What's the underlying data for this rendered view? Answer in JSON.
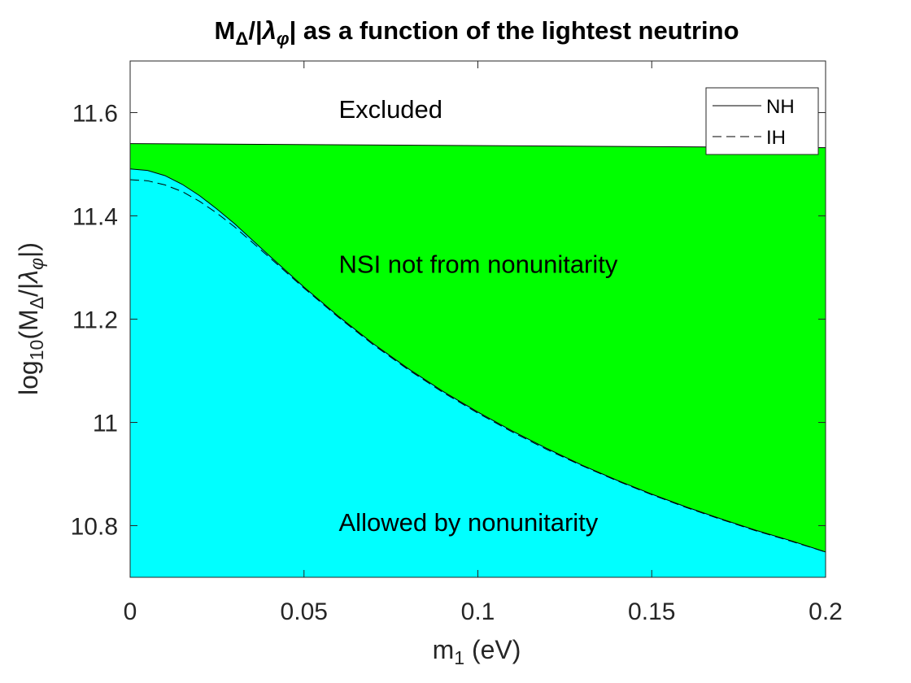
{
  "chart_data": {
    "type": "area",
    "title": {
      "parts": [
        {
          "text": "M",
          "style": "normal"
        },
        {
          "text": "Δ",
          "style": "sub"
        },
        {
          "text": "/|",
          "style": "normal"
        },
        {
          "text": "λ",
          "style": "italic"
        },
        {
          "text": "φ",
          "style": "sub-italic"
        },
        {
          "text": "| as a function of the lightest neutrino",
          "style": "normal"
        }
      ]
    },
    "xlabel": {
      "parts": [
        {
          "text": "m",
          "style": "normal"
        },
        {
          "text": "1",
          "style": "sub"
        },
        {
          "text": " (eV)",
          "style": "normal"
        }
      ]
    },
    "ylabel": {
      "parts": [
        {
          "text": "log",
          "style": "normal"
        },
        {
          "text": "10",
          "style": "sub"
        },
        {
          "text": "(M",
          "style": "normal"
        },
        {
          "text": "Δ",
          "style": "sub"
        },
        {
          "text": "/|",
          "style": "normal"
        },
        {
          "text": "λ",
          "style": "italic"
        },
        {
          "text": "φ",
          "style": "sub-italic"
        },
        {
          "text": "|)",
          "style": "normal"
        }
      ]
    },
    "xlim": [
      0,
      0.2
    ],
    "ylim": [
      10.7,
      11.7
    ],
    "xticks": [
      0,
      0.05,
      0.1,
      0.15,
      0.2
    ],
    "xtick_labels": [
      "0",
      "0.05",
      "0.1",
      "0.15",
      "0.2"
    ],
    "yticks": [
      10.8,
      11,
      11.2,
      11.4,
      11.6
    ],
    "ytick_labels": [
      "10.8",
      "11",
      "11.2",
      "11.4",
      "11.6"
    ],
    "grid": false,
    "legend_position": "top-right",
    "x": [
      0,
      0.005,
      0.01,
      0.015,
      0.02,
      0.025,
      0.03,
      0.04,
      0.05,
      0.06,
      0.07,
      0.08,
      0.09,
      0.1,
      0.11,
      0.12,
      0.13,
      0.14,
      0.15,
      0.16,
      0.17,
      0.18,
      0.19,
      0.2
    ],
    "series": [
      {
        "name": "NH",
        "line_style": "solid",
        "values": [
          11.491,
          11.488,
          11.478,
          11.461,
          11.439,
          11.413,
          11.385,
          11.323,
          11.262,
          11.205,
          11.152,
          11.104,
          11.06,
          11.02,
          10.983,
          10.949,
          10.917,
          10.888,
          10.861,
          10.836,
          10.813,
          10.791,
          10.771,
          10.749
        ]
      },
      {
        "name": "IH",
        "line_style": "dashed",
        "values": [
          11.47,
          11.468,
          11.46,
          11.447,
          11.428,
          11.405,
          11.379,
          11.32,
          11.26,
          11.203,
          11.15,
          11.102,
          11.058,
          11.018,
          10.981,
          10.947,
          10.916,
          10.887,
          10.86,
          10.835,
          10.812,
          10.79,
          10.77,
          10.749
        ]
      }
    ],
    "exclusion_boundary": {
      "x": [
        0,
        0.2
      ],
      "values": [
        11.54,
        11.532
      ]
    },
    "regions": [
      {
        "label": "Excluded",
        "color": "#ffffff",
        "label_x": 0.06,
        "label_y": 11.59
      },
      {
        "label": "NSI not from nonunitarity",
        "color": "#00ff00",
        "label_x": 0.06,
        "label_y": 11.29
      },
      {
        "label": "Allowed by nonunitarity",
        "color": "#00ffff",
        "label_x": 0.06,
        "label_y": 10.79
      }
    ]
  }
}
